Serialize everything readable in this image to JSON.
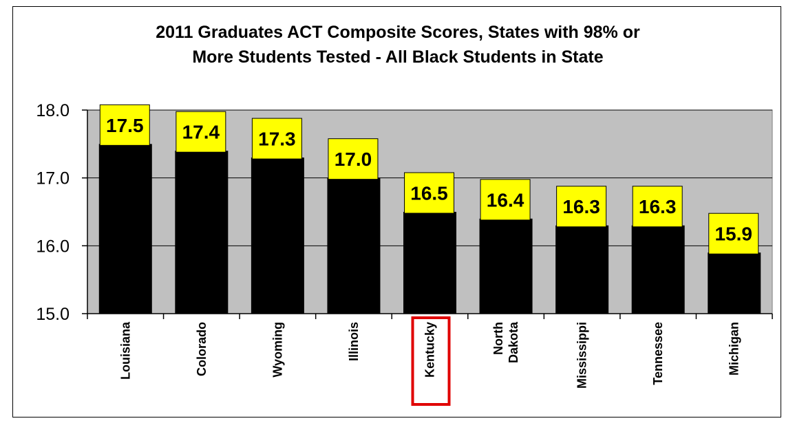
{
  "chart_data": {
    "type": "bar",
    "title": [
      "2011 Graduates ACT Composite Scores, States with 98% or",
      "More Students Tested - All Black Students in State"
    ],
    "categories": [
      [
        "Louisiana"
      ],
      [
        "Colorado"
      ],
      [
        "Wyoming"
      ],
      [
        "Illinois"
      ],
      [
        "Kentucky"
      ],
      [
        "North",
        "Dakota"
      ],
      [
        "Mississippi"
      ],
      [
        "Tennessee"
      ],
      [
        "Michigan"
      ]
    ],
    "values": [
      17.5,
      17.4,
      17.3,
      17.0,
      16.5,
      16.4,
      16.3,
      16.3,
      15.9
    ],
    "value_labels": [
      "17.5",
      "17.4",
      "17.3",
      "17.0",
      "16.5",
      "16.4",
      "16.3",
      "16.3",
      "15.9"
    ],
    "ylim": [
      15.0,
      18.0
    ],
    "yticks": [
      "15.0",
      "16.0",
      "17.0",
      "18.0"
    ],
    "highlighted_category": "Kentucky",
    "grid": true,
    "colors": {
      "plot_background": "#c0c0c0",
      "bar": "#000000",
      "label_box": "#ffff00",
      "highlight_box": "#e00000"
    }
  }
}
